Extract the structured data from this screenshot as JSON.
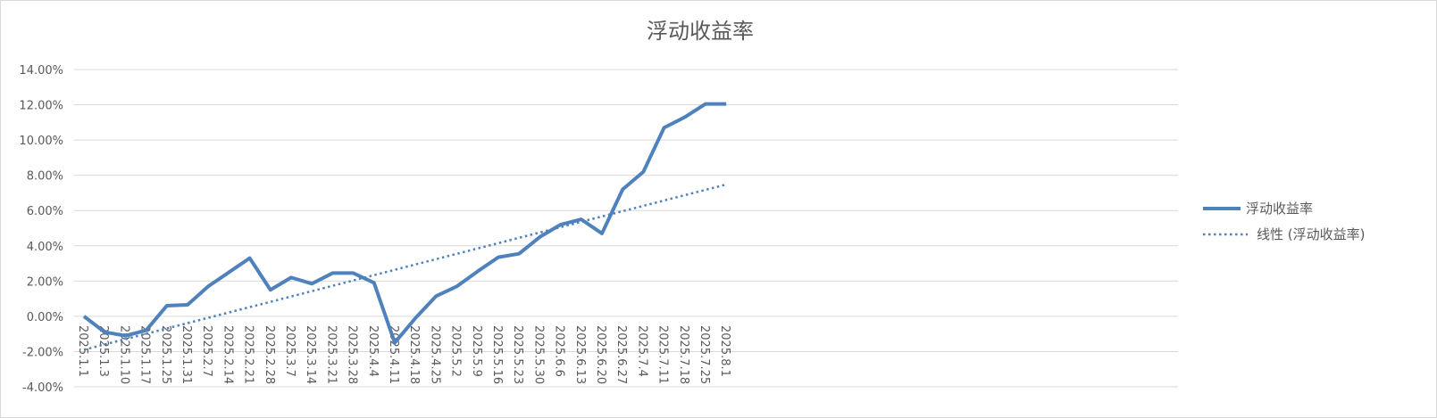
{
  "chart_data": {
    "type": "line",
    "title": "浮动收益率",
    "xlabel": "",
    "ylabel": "",
    "categories": [
      "2025.1.1",
      "2025.1.3",
      "2025.1.10",
      "2025.1.17",
      "2025.1.25",
      "2025.1.31",
      "2025.2.7",
      "2025.2.14",
      "2025.2.21",
      "2025.2.28",
      "2025.3.7",
      "2025.3.14",
      "2025.3.21",
      "2025.3.28",
      "2025.4.4",
      "2025.4.11",
      "2025.4.18",
      "2025.4.25",
      "2025.5.2",
      "2025.5.9",
      "2025.5.16",
      "2025.5.23",
      "2025.5.30",
      "2025.6.6",
      "2025.6.13",
      "2025.6.20",
      "2025.6.27",
      "2025.7.4",
      "2025.7.11",
      "2025.7.18",
      "2025.7.25",
      "2025.8.1"
    ],
    "series": [
      {
        "name": "浮动收益率",
        "values": [
          0.0,
          -0.9,
          -1.1,
          -0.8,
          0.6,
          0.65,
          1.7,
          2.5,
          3.3,
          1.5,
          2.2,
          1.85,
          2.45,
          2.45,
          1.9,
          -1.5,
          -0.1,
          1.15,
          1.7,
          2.55,
          3.35,
          3.55,
          4.5,
          5.2,
          5.5,
          4.7,
          7.2,
          8.2,
          10.7,
          11.3,
          12.05,
          12.05
        ],
        "color": "#4f81bd"
      }
    ],
    "trendline": {
      "name": "线性 (浮动收益率)",
      "type": "linear",
      "start": -1.9,
      "slope": 0.3025,
      "extend_categories": 31,
      "color": "#4f81bd"
    },
    "ylim": [
      -4,
      14
    ],
    "ytick_step": 2,
    "ytick_format": "percent_2dp",
    "grid": true,
    "legend": "right"
  }
}
